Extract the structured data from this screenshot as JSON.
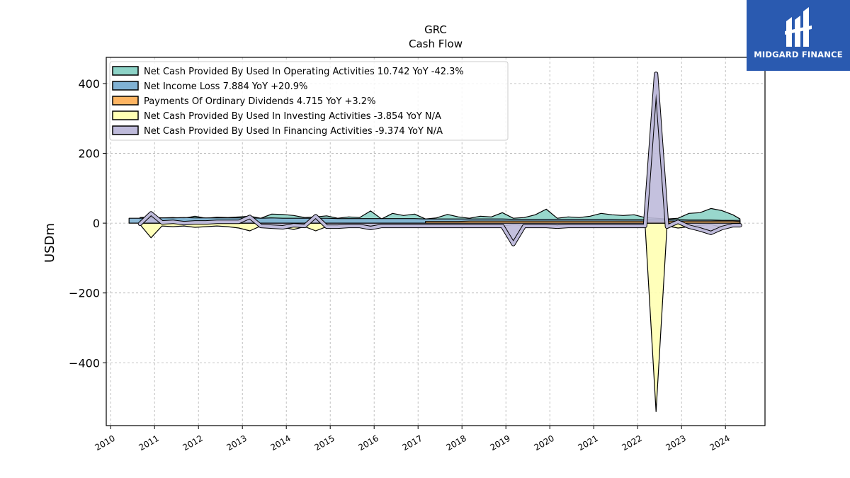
{
  "brand": {
    "name": "MIDGARD FINANCE",
    "bg_color": "#2a5ab0"
  },
  "chart_data": {
    "type": "area",
    "title": "GRC",
    "subtitle": "Cash Flow",
    "xlabel": "",
    "ylabel": "USDm",
    "xlim": [
      2009.9,
      2024.9
    ],
    "ylim": [
      -580,
      475
    ],
    "yticks": [
      400,
      200,
      0,
      -200,
      -400
    ],
    "ytick_labels": [
      "400",
      "200",
      "0",
      "−200",
      "−400"
    ],
    "xticks": [
      2010,
      2011,
      2012,
      2013,
      2014,
      2015,
      2016,
      2017,
      2018,
      2019,
      2020,
      2021,
      2022,
      2023,
      2024
    ],
    "xtick_labels": [
      "2010",
      "2011",
      "2012",
      "2013",
      "2014",
      "2015",
      "2016",
      "2017",
      "2018",
      "2019",
      "2020",
      "2021",
      "2022",
      "2023",
      "2024"
    ],
    "grid": true,
    "legend_position": "top-left",
    "x": [
      2010.42,
      2010.67,
      2010.92,
      2011.17,
      2011.42,
      2011.67,
      2011.92,
      2012.17,
      2012.42,
      2012.67,
      2012.92,
      2013.17,
      2013.42,
      2013.67,
      2013.92,
      2014.17,
      2014.42,
      2014.67,
      2014.92,
      2015.17,
      2015.42,
      2015.67,
      2015.92,
      2016.17,
      2016.42,
      2016.67,
      2016.92,
      2017.17,
      2017.42,
      2017.67,
      2017.92,
      2018.17,
      2018.42,
      2018.67,
      2018.92,
      2019.17,
      2019.42,
      2019.67,
      2019.92,
      2020.17,
      2020.42,
      2020.67,
      2020.92,
      2021.17,
      2021.42,
      2021.67,
      2021.92,
      2022.17,
      2022.42,
      2022.67,
      2022.92,
      2023.17,
      2023.42,
      2023.67,
      2023.92,
      2024.17,
      2024.33
    ],
    "series": [
      {
        "name": "Net Cash Provided By Used In Operating Activities  10.742 YoY -42.3%",
        "color": "#8dd3c7",
        "values": [
          null,
          16,
          18,
          15,
          16,
          14,
          20,
          14,
          17,
          16,
          18,
          20,
          14,
          26,
          25,
          22,
          16,
          18,
          21,
          14,
          18,
          16,
          35,
          12,
          28,
          22,
          26,
          12,
          15,
          25,
          18,
          14,
          20,
          18,
          30,
          14,
          16,
          24,
          40,
          14,
          18,
          16,
          20,
          28,
          24,
          22,
          24,
          16,
          14,
          12,
          14,
          28,
          30,
          42,
          36,
          24,
          12
        ]
      },
      {
        "name": "Net Income Loss  7.884 YoY +20.9%",
        "color": "#80b1d3",
        "values": [
          14,
          14,
          15,
          15,
          15,
          16,
          15,
          15,
          15,
          15,
          15,
          15,
          14,
          15,
          14,
          14,
          14,
          14,
          14,
          13,
          13,
          13,
          13,
          13,
          13,
          13,
          13,
          12,
          12,
          12,
          12,
          12,
          12,
          12,
          12,
          11,
          11,
          11,
          11,
          11,
          11,
          11,
          11,
          11,
          11,
          10,
          10,
          10,
          10,
          10,
          10,
          9,
          9,
          9,
          8,
          8,
          8
        ]
      },
      {
        "name": "Payments Of Ordinary Dividends  4.715 YoY +3.2%",
        "color": "#fdb462",
        "values": [
          null,
          null,
          null,
          null,
          null,
          null,
          null,
          null,
          null,
          null,
          null,
          null,
          null,
          null,
          null,
          null,
          null,
          null,
          null,
          null,
          null,
          null,
          null,
          null,
          null,
          null,
          null,
          5,
          5,
          5,
          5,
          6,
          6,
          6,
          6,
          6,
          6,
          6,
          6,
          6,
          6,
          6,
          6,
          6,
          6,
          6,
          6,
          6,
          6,
          6,
          6,
          6,
          6,
          6,
          6,
          6,
          5
        ]
      },
      {
        "name": "Net Cash Provided By Used In Investing Activities  -3.854 YoY N/A",
        "color": "#ffffb3",
        "values": [
          null,
          -4,
          -42,
          -8,
          -10,
          -8,
          -12,
          -10,
          -8,
          -10,
          -14,
          -22,
          -8,
          -10,
          -12,
          -18,
          -10,
          -22,
          -10,
          -8,
          -6,
          -8,
          -6,
          -6,
          -4,
          -4,
          -6,
          -6,
          -8,
          -6,
          -4,
          -6,
          -6,
          -6,
          -8,
          -4,
          -6,
          -4,
          -8,
          -6,
          -4,
          -4,
          -6,
          -4,
          -4,
          -6,
          -4,
          -4,
          -540,
          -8,
          -14,
          -10,
          -6,
          -4,
          -12,
          -6,
          -4
        ]
      },
      {
        "name": "Net Cash Provided By Used In Financing Activities  -9.374 YoY N/A",
        "color": "#bebada",
        "values": [
          null,
          -2,
          28,
          2,
          4,
          0,
          2,
          2,
          4,
          4,
          4,
          18,
          -8,
          -10,
          -12,
          -6,
          -8,
          20,
          -10,
          -10,
          -8,
          -8,
          -14,
          -8,
          -8,
          -8,
          -8,
          -8,
          -8,
          -8,
          -8,
          -8,
          -8,
          -8,
          -8,
          -60,
          -8,
          -8,
          -8,
          -10,
          -8,
          -8,
          -8,
          -8,
          -8,
          -8,
          -8,
          -8,
          428,
          -10,
          4,
          -10,
          -18,
          -28,
          -14,
          -6,
          -6
        ]
      }
    ]
  }
}
